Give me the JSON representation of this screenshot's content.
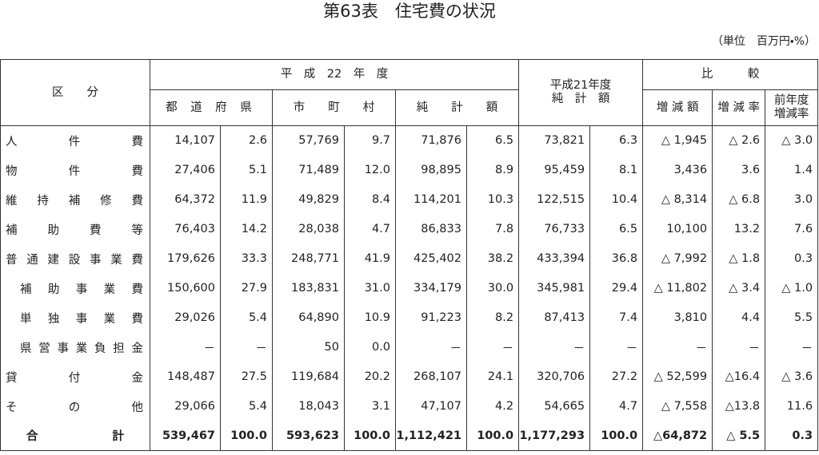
{
  "title": "第63表　住宅費の状況",
  "unit_note": "（単位　百万円・%）",
  "header": {
    "category": "区　　分",
    "fy22": "平　成　22　年　度",
    "prefecture": "都 道 府 県",
    "municipality": "市　　町　　村",
    "net_total": "純　　計　　額",
    "fy21": "平成21年度\n純　計　額",
    "comparison": "比　　　較",
    "change_amount": "増 減 額",
    "change_rate": "増 減 率",
    "prev_change_rate": "前年度\n増減率"
  },
  "table": {
    "rows": [
      {
        "label": "人件費",
        "values": [
          "14,107",
          "2.6",
          "57,769",
          "9.7",
          "71,876",
          "6.5",
          "73,821",
          "6.3",
          "△ 1,945",
          "△ 2.6",
          "△ 3.0"
        ]
      },
      {
        "label": "物件費",
        "values": [
          "27,406",
          "5.1",
          "71,489",
          "12.0",
          "98,895",
          "8.9",
          "95,459",
          "8.1",
          "3,436",
          "3.6",
          "1.4"
        ]
      },
      {
        "label": "維持補修費",
        "values": [
          "64,372",
          "11.9",
          "49,829",
          "8.4",
          "114,201",
          "10.3",
          "122,515",
          "10.4",
          "△ 8,314",
          "△ 6.8",
          "3.0"
        ]
      },
      {
        "label": "補助費等",
        "values": [
          "76,403",
          "14.2",
          "28,038",
          "4.7",
          "86,833",
          "7.8",
          "76,733",
          "6.5",
          "10,100",
          "13.2",
          "7.6"
        ]
      },
      {
        "label": "普通建設事業費",
        "values": [
          "179,626",
          "33.3",
          "248,771",
          "41.9",
          "425,402",
          "38.2",
          "433,394",
          "36.8",
          "△ 7,992",
          "△ 1.8",
          "0.3"
        ]
      },
      {
        "label": "補助事業費",
        "values": [
          "150,600",
          "27.9",
          "183,831",
          "31.0",
          "334,179",
          "30.0",
          "345,981",
          "29.4",
          "△ 11,802",
          "△ 3.4",
          "△ 1.0"
        ]
      },
      {
        "label": "単独事業費",
        "values": [
          "29,026",
          "5.4",
          "64,890",
          "10.9",
          "91,223",
          "8.2",
          "87,413",
          "7.4",
          "3,810",
          "4.4",
          "5.5"
        ]
      },
      {
        "label": "県営事業負担金",
        "values": [
          "－",
          "－",
          "50",
          "0.0",
          "－",
          "－",
          "－",
          "－",
          "－",
          "－",
          "－"
        ]
      },
      {
        "label": "貸付金",
        "values": [
          "148,487",
          "27.5",
          "119,684",
          "20.2",
          "268,107",
          "24.1",
          "320,706",
          "27.2",
          "△ 52,599",
          "△16.4",
          "△ 3.6"
        ]
      },
      {
        "label": "その他",
        "values": [
          "29,066",
          "5.4",
          "18,043",
          "3.1",
          "47,107",
          "4.2",
          "54,665",
          "4.7",
          "△ 7,558",
          "△13.8",
          "11.6"
        ]
      },
      {
        "label": "合計",
        "values": [
          "539,467",
          "100.0",
          "593,623",
          "100.0",
          "1,112,421",
          "100.0",
          "1,177,293",
          "100.0",
          "△64,872",
          "△ 5.5",
          "0.3"
        ]
      }
    ]
  }
}
